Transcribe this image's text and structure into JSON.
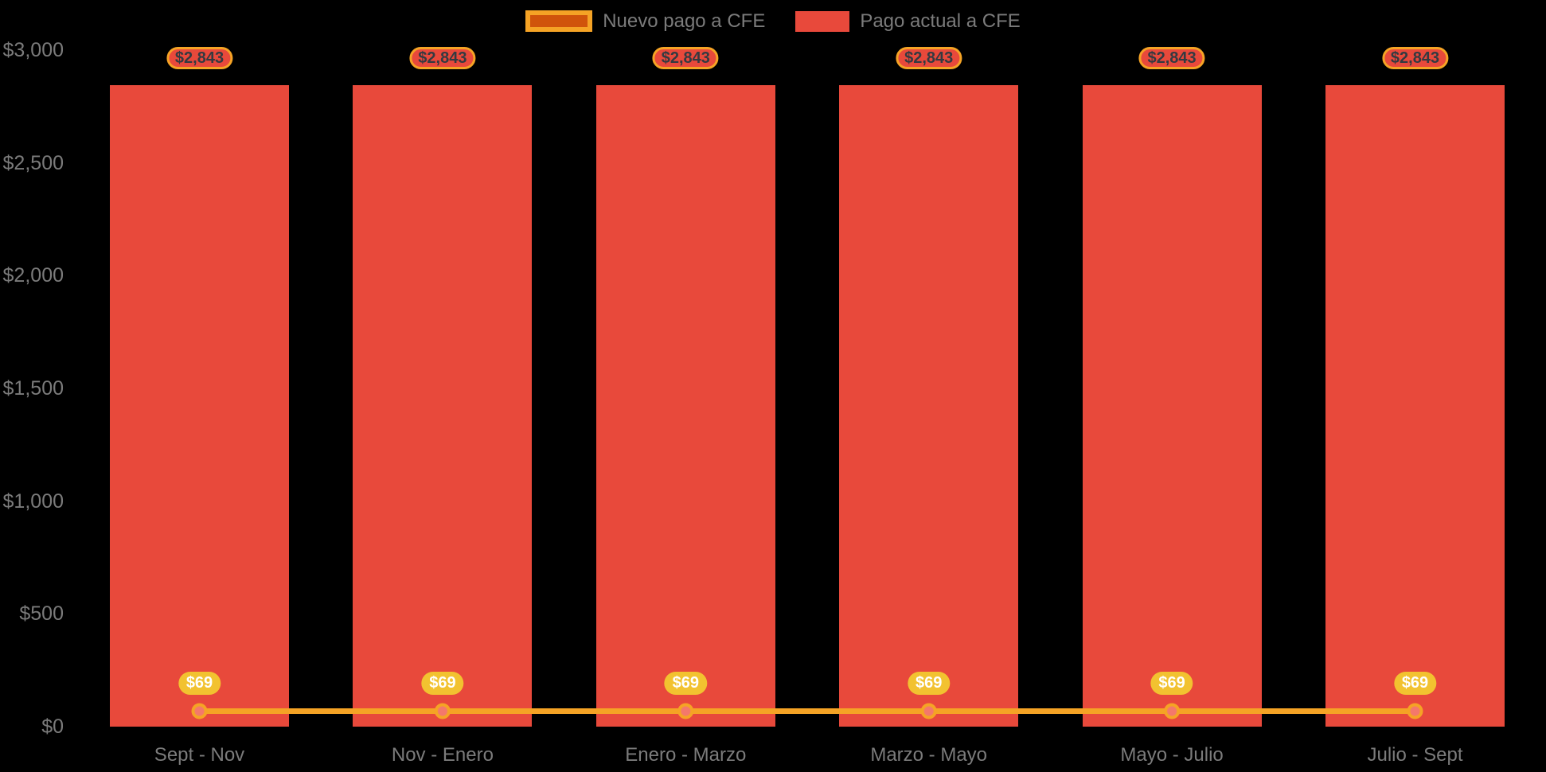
{
  "colors": {
    "background": "#000000",
    "bar": "#E8493B",
    "line": "#F5A325",
    "marker-fill": "#F4786B",
    "badge-yellow": "#F2C230",
    "badge-dark-text": "#333A41",
    "badge-light-text": "#FFFFFF",
    "legend-nuevo-fill": "#D0540B",
    "axis-text": "#7B7B7B"
  },
  "legend": {
    "items": [
      {
        "label": "Nuevo pago a CFE"
      },
      {
        "label": "Pago actual a CFE"
      }
    ]
  },
  "chart_data": {
    "type": "bar",
    "title": "",
    "xlabel": "",
    "ylabel": "",
    "categories": [
      "Sept - Nov",
      "Nov - Enero",
      "Enero - Marzo",
      "Marzo - Mayo",
      "Mayo - Julio",
      "Julio - Sept"
    ],
    "series": [
      {
        "name": "Nuevo pago a CFE",
        "type": "line",
        "color": "#F5A325",
        "values": [
          69,
          69,
          69,
          69,
          69,
          69
        ],
        "point_labels": [
          "$69",
          "$69",
          "$69",
          "$69",
          "$69",
          "$69"
        ]
      },
      {
        "name": "Pago actual a CFE",
        "type": "bar",
        "color": "#E8493B",
        "values": [
          2843,
          2843,
          2843,
          2843,
          2843,
          2843
        ],
        "point_labels": [
          "$2,843",
          "$2,843",
          "$2,843",
          "$2,843",
          "$2,843",
          "$2,843"
        ]
      }
    ],
    "y_ticks": [
      {
        "value": 0,
        "label": "$0"
      },
      {
        "value": 500,
        "label": "$500"
      },
      {
        "value": 1000,
        "label": "$1,000"
      },
      {
        "value": 1500,
        "label": "$1,500"
      },
      {
        "value": 2000,
        "label": "$2,000"
      },
      {
        "value": 2500,
        "label": "$2,500"
      },
      {
        "value": 3000,
        "label": "$3,000"
      }
    ],
    "ylim": [
      0,
      3000
    ],
    "grid": false,
    "legend_position": "top-center"
  }
}
